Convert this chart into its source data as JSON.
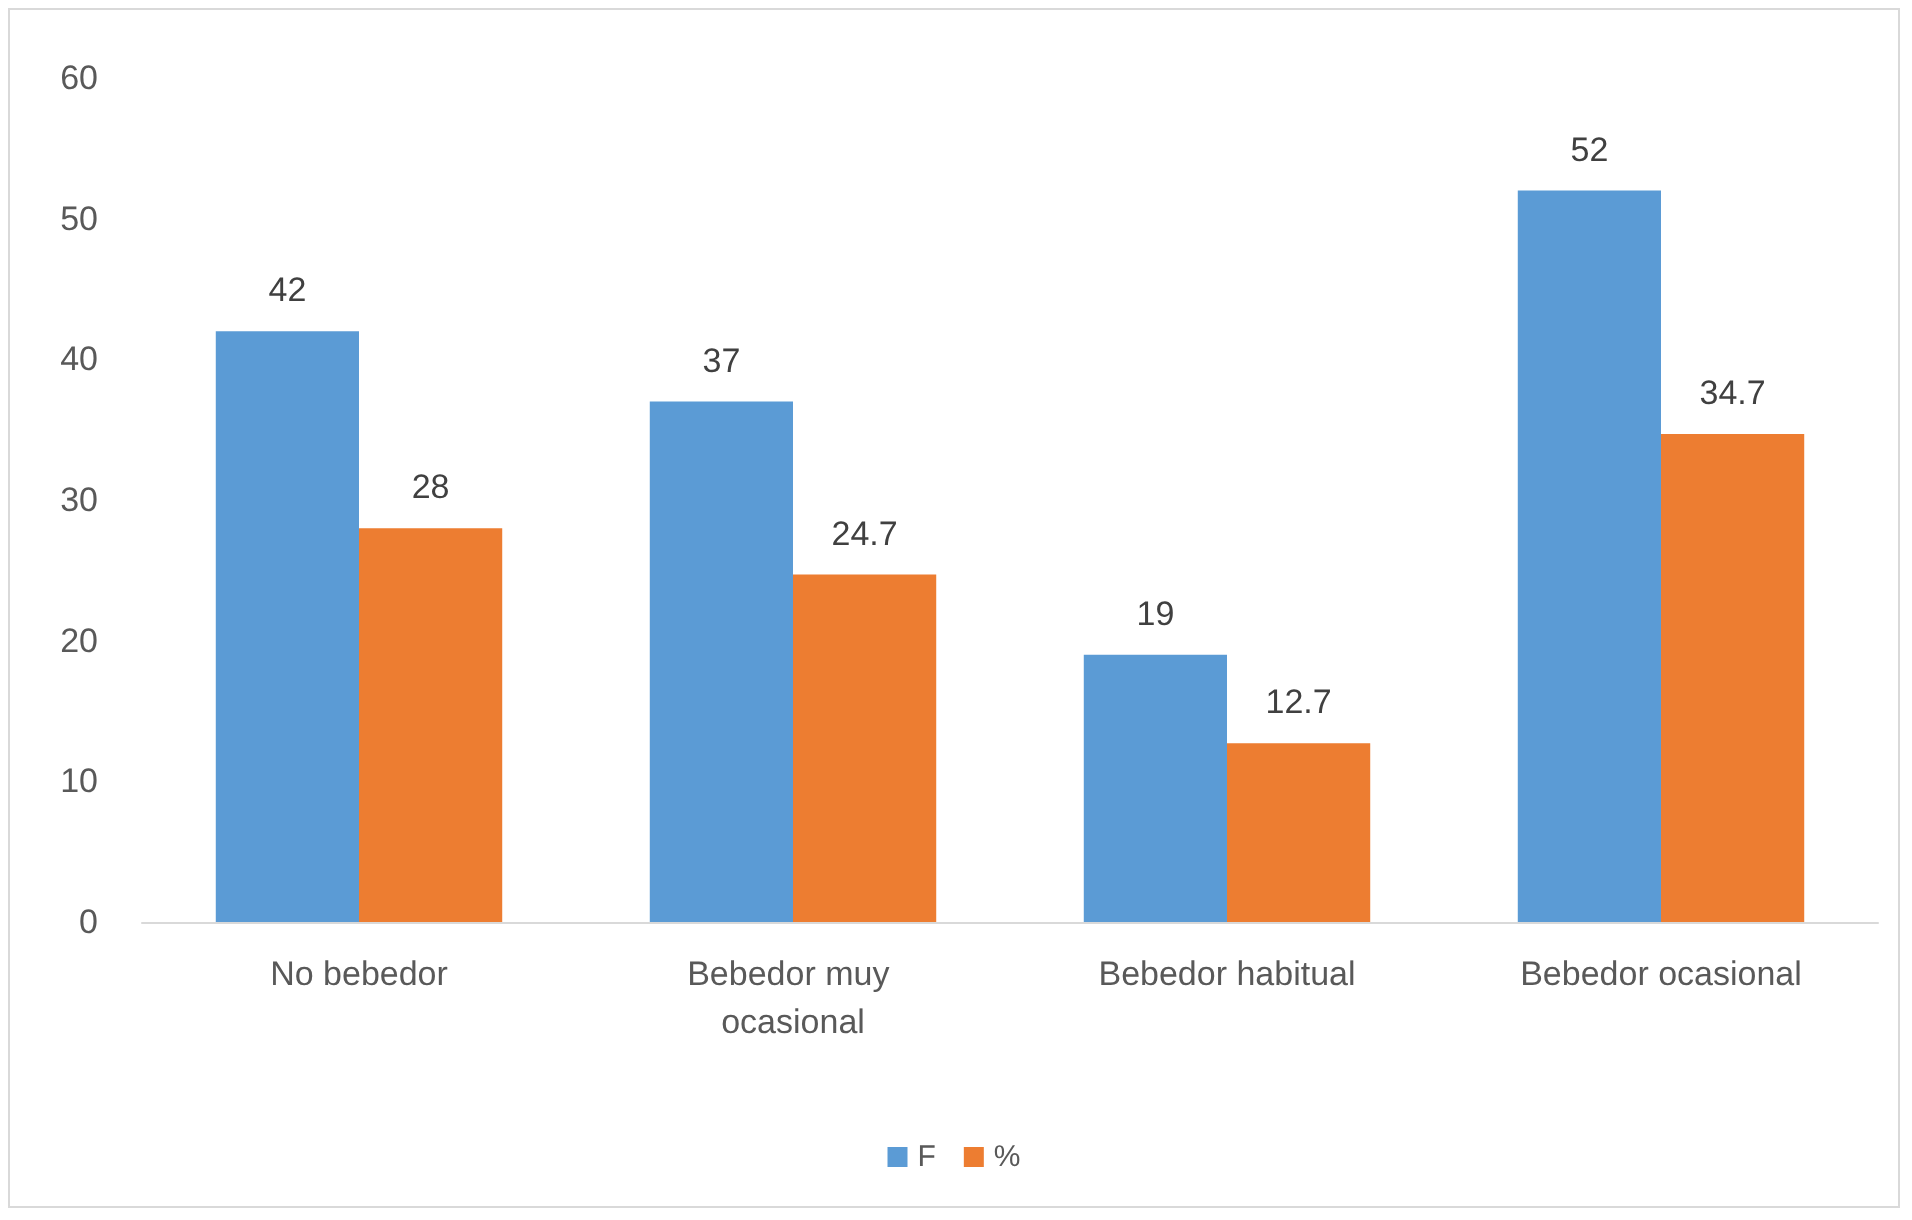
{
  "chart_data": {
    "type": "bar",
    "categories": [
      "No bebedor",
      "Bebedor muy ocasional",
      "Bebedor habitual",
      "Bebedor ocasional"
    ],
    "series": [
      {
        "name": "F",
        "color": "#5b9bd5",
        "values": [
          42,
          37,
          19,
          52
        ]
      },
      {
        "name": "%",
        "color": "#ed7d31",
        "values": [
          28,
          24.7,
          12.7,
          34.7
        ]
      }
    ],
    "ylim": [
      0,
      60
    ],
    "yticks": [
      0,
      10,
      20,
      30,
      40,
      50,
      60
    ],
    "grid": false,
    "legend": "bottom",
    "data_labels": true
  }
}
